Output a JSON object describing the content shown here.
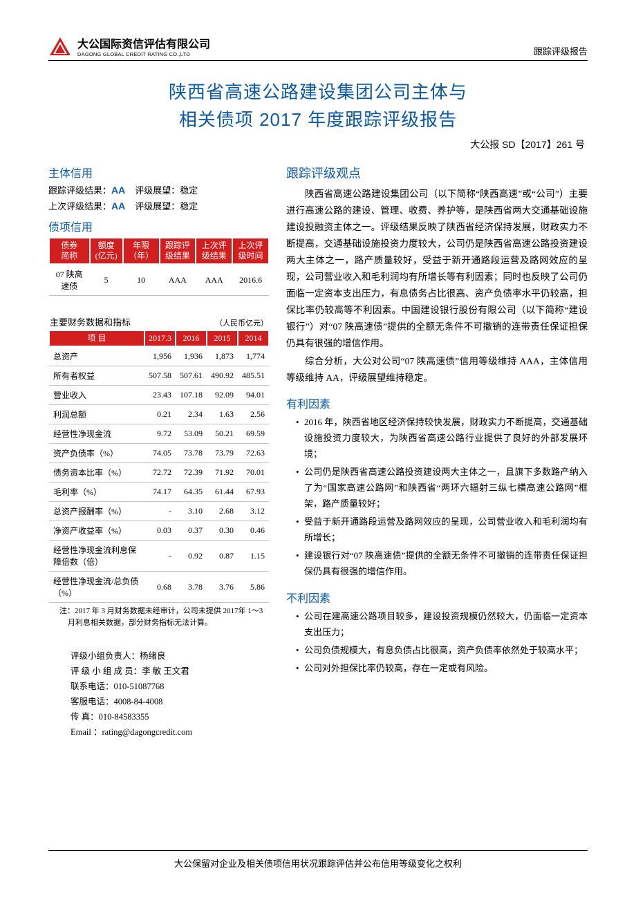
{
  "header": {
    "company_cn": "大公国际资信评估有限公司",
    "company_en": "DAGONG GLOBAL CREDIT RATING CO.,LTD",
    "doc_type": "跟踪评级报告",
    "logo_color": "#d21e1f"
  },
  "title": {
    "line1": "陕西省高速公路建设集团公司主体与",
    "line2": "相关债项 2017 年度跟踪评级报告",
    "doc_number": "大公报 SD【2017】261 号",
    "title_color": "#0b5aa5",
    "title_fontsize": 26
  },
  "entity_credit": {
    "heading": "主体信用",
    "track_label": "跟踪评级结果：",
    "track_result": "AA",
    "outlook_label": "评级展望：",
    "track_outlook": "稳定",
    "prev_label": "上次评级结果：",
    "prev_result": "AA",
    "prev_outlook": "稳定"
  },
  "bond_credit": {
    "heading": "债项信用",
    "columns": [
      "债券\n简称",
      "额度\n(亿元)",
      "年限\n（年）",
      "跟踪评\n级结果",
      "上次评\n级结果",
      "上次评\n级时间"
    ],
    "rows": [
      [
        "07 陕高\n速债",
        "5",
        "10",
        "AAA",
        "AAA",
        "2016.6"
      ]
    ],
    "header_bg": "#d21e1f",
    "header_fg": "#ffffff"
  },
  "fin": {
    "caption": "主要财务数据和指标",
    "unit": "（人民币亿元）",
    "columns": [
      "项  目",
      "2017.3",
      "2016",
      "2015",
      "2014"
    ],
    "rows": [
      [
        "总资产",
        "1,956",
        "1,936",
        "1,873",
        "1,774"
      ],
      [
        "所有者权益",
        "507.58",
        "507.61",
        "490.92",
        "485.51"
      ],
      [
        "营业收入",
        "23.43",
        "107.18",
        "92.09",
        "94.01"
      ],
      [
        "利润总额",
        "0.21",
        "2.34",
        "1.63",
        "2.56"
      ],
      [
        "经营性净现金流",
        "9.72",
        "53.09",
        "50.21",
        "69.59"
      ],
      [
        "资产负债率（%）",
        "74.05",
        "73.78",
        "73.79",
        "72.63"
      ],
      [
        "债务资本比率（%）",
        "72.72",
        "72.39",
        "71.92",
        "70.01"
      ],
      [
        "毛利率（%）",
        "74.17",
        "64.35",
        "61.44",
        "67.93"
      ],
      [
        "总资产报酬率（%）",
        "-",
        "3.10",
        "2.68",
        "3.12"
      ],
      [
        "净资产收益率（%）",
        "0.03",
        "0.37",
        "0.30",
        "0.46"
      ],
      [
        "经营性净现金流利息保障倍数（倍）",
        "-",
        "0.92",
        "0.87",
        "1.15"
      ],
      [
        "经营性净现金流/总负债（%）",
        "0.68",
        "3.78",
        "3.76",
        "5.86"
      ]
    ],
    "note": "注：2017 年 3 月财务数据未经审计，公司未提供 2017年 1～3 月利息相关数据，部分财务指标无法计算。"
  },
  "contact": {
    "leader_label": "评级小组负责人：",
    "leader": "杨绪良",
    "members_label": "评 级 小 组 成 员：",
    "members": "李  敏   王文君",
    "tel_label": "联系电话：",
    "tel": "010-51087768",
    "svc_label": "客服电话：",
    "svc": "4008-84-4008",
    "fax_label": "传      真：",
    "fax": "010-84583355",
    "email_label": "Email  ：",
    "email": "rating@dagongcredit.com"
  },
  "viewpoint": {
    "heading": "跟踪评级观点",
    "para1": "陕西省高速公路建设集团公司（以下简称“陕西高速”或“公司”）主要进行高速公路的建设、管理、收费、养护等，是陕西省两大交通基础设施建设投融资主体之一。评级结果反映了陕西省经济保持发展，财政实力不断提高，交通基础设施投资力度较大，公司仍是陕西省高速公路投资建设两大主体之一，路产质量较好，受益于新开通路段运营及路网效应的呈现，公司营业收入和毛利润均有所增长等有利因素；同时也反映了公司仍面临一定资本支出压力，有息债务占比很高、资产负债率水平仍较高，担保比率仍较高等不利因素。中国建设银行股份有限公司（以下简称“建设银行”）对“07 陕高速债”提供的全额无条件不可撤销的连带责任保证担保仍具有很强的增信作用。",
    "para2": "综合分析，大公对公司“07 陕高速债”信用等级维持 AAA，主体信用等级维持 AA，评级展望维持稳定。"
  },
  "positive": {
    "heading": "有利因素",
    "items": [
      "2016 年，陕西省地区经济保持较快发展，财政实力不断提高，交通基础设施投资力度较大，为陕西省高速公路行业提供了良好的外部发展环境；",
      "公司仍是陕西省高速公路投资建设两大主体之一，且旗下多数路产纳入了为“国家高速公路网”和陕西省“两环六辐射三纵七横高速公路网”框架，路产质量较好；",
      "受益于新开通路段运营及路网效应的呈现，公司营业收入和毛利润均有所增长；",
      "建设银行对“07 陕高速债”提供的全额无条件不可撤销的连带责任保证担保仍具有很强的增信作用。"
    ]
  },
  "negative": {
    "heading": "不利因素",
    "items": [
      "公司在建高速公路项目较多，建设投资规模仍然较大，仍面临一定资本支出压力；",
      "公司负债规模大，有息负债占比很高，资产负债率依然处于较高水平；",
      "公司对外担保比率仍较高，存在一定或有风险。"
    ]
  },
  "footer": "大公保留对企业及相关债项信用状况跟踪评估并公布信用等级变化之权利"
}
